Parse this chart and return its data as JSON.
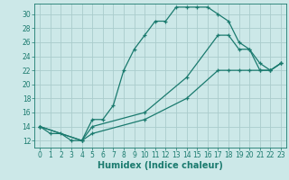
{
  "xlabel": "Humidex (Indice chaleur)",
  "bg_color": "#cce8e8",
  "line_color": "#1a7a6e",
  "grid_color": "#aacccc",
  "xlim": [
    -0.5,
    23.5
  ],
  "ylim": [
    11,
    31.5
  ],
  "yticks": [
    12,
    14,
    16,
    18,
    20,
    22,
    24,
    26,
    28,
    30
  ],
  "xticks": [
    0,
    1,
    2,
    3,
    4,
    5,
    6,
    7,
    8,
    9,
    10,
    11,
    12,
    13,
    14,
    15,
    16,
    17,
    18,
    19,
    20,
    21,
    22,
    23
  ],
  "series1_x": [
    0,
    1,
    2,
    3,
    4,
    5,
    6,
    7,
    8,
    9,
    10,
    11,
    12,
    13,
    14,
    15,
    16,
    17,
    18,
    19,
    20,
    21,
    22,
    23
  ],
  "series1_y": [
    14,
    13,
    13,
    12,
    12,
    15,
    15,
    17,
    22,
    25,
    27,
    29,
    29,
    31,
    31,
    31,
    31,
    30,
    29,
    26,
    25,
    22,
    22,
    23
  ],
  "series2_x": [
    0,
    4,
    5,
    10,
    14,
    17,
    18,
    19,
    20,
    21,
    22,
    23
  ],
  "series2_y": [
    14,
    12,
    14,
    16,
    21,
    27,
    27,
    25,
    25,
    23,
    22,
    23
  ],
  "series3_x": [
    0,
    4,
    5,
    10,
    14,
    17,
    18,
    19,
    20,
    21,
    22,
    23
  ],
  "series3_y": [
    14,
    12,
    13,
    15,
    18,
    22,
    22,
    22,
    22,
    22,
    22,
    23
  ],
  "xlabel_fontsize": 7,
  "tick_fontsize": 5.5
}
